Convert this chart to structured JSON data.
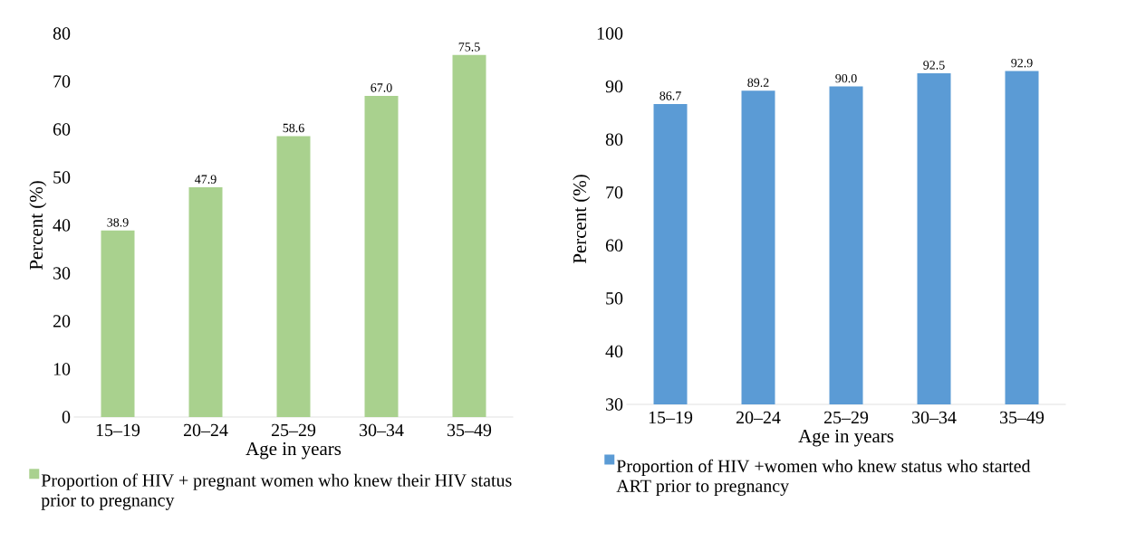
{
  "chart_data": [
    {
      "type": "bar",
      "xlabel": "Age  in years",
      "ylabel": "Percent (%)",
      "categories": [
        "15–19",
        "20–24",
        "25–29",
        "30–34",
        "35–49"
      ],
      "series": [
        {
          "name": "Proportion of HIV + pregnant women who knew their HIV status prior to pregnancy",
          "color": "#a9d18e",
          "values": [
            38.9,
            47.9,
            58.6,
            67.0,
            75.5
          ],
          "value_labels": [
            "38.9",
            "47.9",
            "58.6",
            "67.0",
            "75.5"
          ]
        }
      ],
      "ylim": [
        0,
        80
      ],
      "yticks": [
        0,
        10,
        20,
        30,
        40,
        50,
        60,
        70,
        80
      ],
      "grid": false,
      "legend": "bottom"
    },
    {
      "type": "bar",
      "xlabel": "Age  in years",
      "ylabel": "Percent (%)",
      "categories": [
        "15–19",
        "20–24",
        "25–29",
        "30–34",
        "35–49"
      ],
      "series": [
        {
          "name": "Proportion of HIV +women who knew status who started ART  prior to pregnancy",
          "color": "#5b9bd5",
          "values": [
            86.7,
            89.2,
            90.0,
            92.5,
            92.9
          ],
          "value_labels": [
            "86.7",
            "89.2",
            "90.0",
            "92.5",
            "92.9"
          ]
        }
      ],
      "ylim": [
        30,
        100
      ],
      "yticks": [
        30,
        40,
        50,
        60,
        70,
        80,
        90,
        100
      ],
      "grid": false,
      "legend": "bottom"
    }
  ]
}
